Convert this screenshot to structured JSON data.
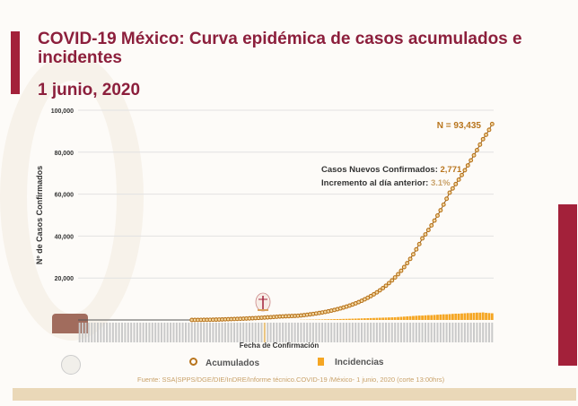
{
  "slide": {
    "title": "COVID-19 México: Curva epidémica de casos acumulados e incidentes",
    "date": "1 junio, 2020",
    "source": "Fuente: SSA|SPPS/DGE/DIE/InDRE/Informe técnico.COVID-19 /México- 1 junio, 2020 (corte 13:00hrs)"
  },
  "annotations": {
    "total": "N = 93,435",
    "new_label": "Casos Nuevos Confirmados: ",
    "new_value": "2,771",
    "increase_label": "Incremento al día anterior: ",
    "increase_value": "3.1%"
  },
  "colors": {
    "brand": "#8c1f3c",
    "accumulated": "#b8741c",
    "incidence": "#f5a623",
    "source": "#c9a26a"
  },
  "chart_data": {
    "type": "line",
    "xlabel": "Fecha de Confirmación",
    "ylabel": "Nº de Casos Confirmados",
    "ylim": [
      0,
      100000
    ],
    "yticks": [
      "20,000",
      "40,000",
      "60,000",
      "80,000",
      "100,000"
    ],
    "grid": true,
    "legend_position": "bottom",
    "series": [
      {
        "name": "Acumulados",
        "type": "line-markers",
        "values": [
          5,
          10,
          20,
          40,
          60,
          80,
          100,
          130,
          160,
          200,
          250,
          300,
          350,
          400,
          450,
          500,
          560,
          620,
          680,
          750,
          820,
          900,
          980,
          1060,
          1140,
          1230,
          1320,
          1420,
          1520,
          1630,
          1700,
          1760,
          1820,
          1880,
          1940,
          2000,
          2150,
          2310,
          2480,
          2670,
          2870,
          3090,
          3320,
          3570,
          3840,
          4130,
          4440,
          4770,
          5130,
          5510,
          5930,
          6370,
          6850,
          7370,
          7920,
          8510,
          9150,
          9840,
          10580,
          11380,
          12230,
          13150,
          14130,
          15190,
          16330,
          17560,
          18870,
          20290,
          21810,
          23450,
          25210,
          27100,
          29130,
          31320,
          33660,
          36190,
          38900,
          40800,
          42900,
          45100,
          47400,
          49800,
          52300,
          55000,
          57800,
          60700,
          62700,
          64800,
          66900,
          69100,
          71400,
          73700,
          76100,
          78500,
          81000,
          83600,
          86200,
          88300,
          90664,
          93435
        ]
      },
      {
        "name": "Incidencias",
        "type": "bar",
        "values": [
          0,
          0,
          0,
          0,
          0,
          0,
          0,
          0,
          0,
          0,
          0,
          0,
          0,
          0,
          0,
          0,
          0,
          0,
          0,
          0,
          0,
          0,
          0,
          0,
          0,
          0,
          0,
          0,
          0,
          0,
          0,
          0,
          0,
          0,
          0,
          0,
          100,
          120,
          140,
          160,
          180,
          200,
          230,
          260,
          300,
          330,
          360,
          400,
          430,
          460,
          500,
          540,
          580,
          620,
          660,
          700,
          750,
          800,
          850,
          900,
          950,
          1000,
          1050,
          1100,
          1150,
          1200,
          1250,
          1300,
          1400,
          1500,
          1600,
          1700,
          1800,
          1900,
          2000,
          2100,
          2100,
          2200,
          2300,
          2300,
          2400,
          2500,
          2600,
          2700,
          2700,
          2800,
          2900,
          3000,
          3000,
          3100,
          3200,
          3300,
          3300,
          3400,
          3500,
          3500,
          3600,
          3400,
          3300,
          3200
        ]
      }
    ]
  }
}
